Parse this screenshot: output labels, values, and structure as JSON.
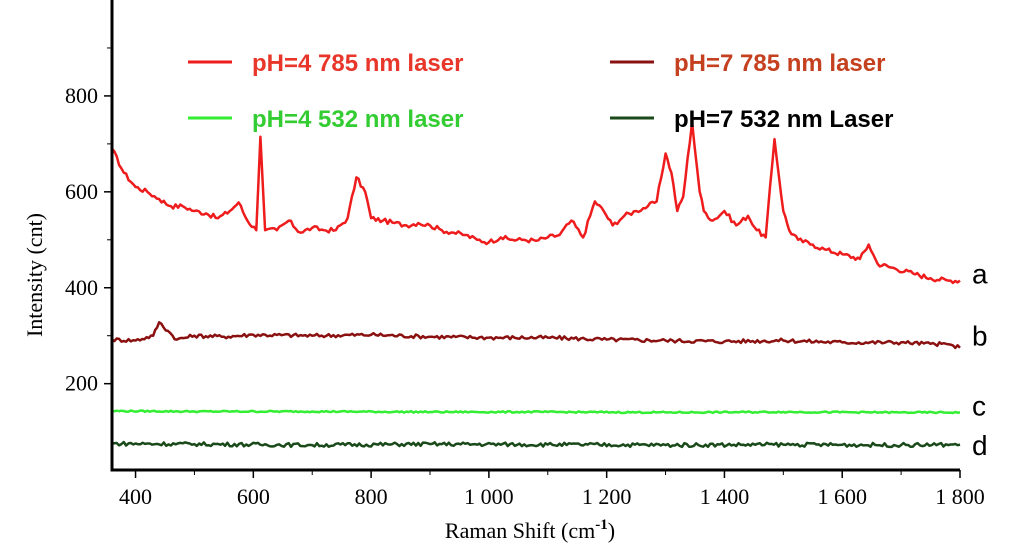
{
  "chart_data": {
    "type": "line",
    "xlabel": "Raman Shift (cm",
    "xlabel_sup": "-1",
    "xlabel_suffix": ")",
    "ylabel": "Intensity (cnt)",
    "xlim": [
      360,
      1800
    ],
    "ylim": [
      20,
      1000
    ],
    "x_ticks": [
      400,
      600,
      800,
      1000,
      1200,
      1400,
      1600,
      1800
    ],
    "x_tick_labels": [
      "400",
      "600",
      "800",
      "1 000",
      "1 200",
      "1 400",
      "1 600",
      "1 800"
    ],
    "y_ticks": [
      200,
      400,
      600,
      800
    ],
    "y_tick_labels": [
      "200",
      "400",
      "600",
      "800"
    ],
    "grid": false,
    "legend_position": "top",
    "series": [
      {
        "name": "pH=4  785 nm laser",
        "curve_label": "a",
        "color": "#ee1c1c",
        "text_color": "#e8372a",
        "x": [
          360,
          380,
          400,
          420,
          440,
          460,
          480,
          500,
          520,
          540,
          560,
          575,
          590,
          605,
          612,
          620,
          640,
          660,
          680,
          700,
          720,
          740,
          760,
          775,
          790,
          800,
          820,
          840,
          860,
          880,
          900,
          920,
          940,
          960,
          980,
          1000,
          1020,
          1040,
          1060,
          1080,
          1100,
          1120,
          1140,
          1160,
          1180,
          1195,
          1210,
          1230,
          1250,
          1270,
          1285,
          1300,
          1310,
          1320,
          1330,
          1345,
          1358,
          1365,
          1380,
          1400,
          1420,
          1440,
          1455,
          1470,
          1485,
          1500,
          1510,
          1525,
          1550,
          1570,
          1600,
          1630,
          1645,
          1660,
          1690,
          1720,
          1750,
          1780,
          1800
        ],
        "values": [
          690,
          640,
          610,
          600,
          585,
          570,
          570,
          560,
          555,
          545,
          560,
          578,
          540,
          520,
          715,
          520,
          520,
          540,
          515,
          525,
          520,
          520,
          545,
          630,
          600,
          545,
          540,
          535,
          530,
          535,
          530,
          520,
          515,
          510,
          500,
          495,
          505,
          500,
          500,
          498,
          505,
          510,
          540,
          505,
          580,
          560,
          530,
          550,
          560,
          570,
          580,
          680,
          640,
          560,
          590,
          745,
          600,
          560,
          540,
          560,
          530,
          550,
          520,
          505,
          710,
          560,
          520,
          500,
          490,
          480,
          470,
          460,
          490,
          450,
          440,
          430,
          420,
          415,
          415
        ]
      },
      {
        "name": "pH=7  785 nm laser",
        "curve_label": "b",
        "color": "#8b1111",
        "text_color": "#c4401f",
        "x": [
          360,
          400,
          430,
          440,
          455,
          470,
          500,
          550,
          600,
          700,
          800,
          900,
          1000,
          1100,
          1200,
          1300,
          1400,
          1500,
          1600,
          1700,
          1750,
          1780,
          1800
        ],
        "values": [
          292,
          290,
          300,
          328,
          310,
          292,
          300,
          298,
          302,
          300,
          302,
          298,
          296,
          296,
          292,
          290,
          288,
          290,
          286,
          286,
          283,
          282,
          275
        ]
      },
      {
        "name": "pH=4  532 nm laser",
        "curve_label": "c",
        "color": "#33ee33",
        "text_color": "#33cc33",
        "x": [
          360,
          500,
          700,
          900,
          1100,
          1300,
          1500,
          1700,
          1800
        ],
        "values": [
          143,
          142,
          142,
          141,
          141,
          140,
          141,
          140,
          140
        ]
      },
      {
        "name": "pH=7  532 nm Laser",
        "curve_label": "d",
        "color": "#1a4a1a",
        "text_color": "#000000",
        "x": [
          360,
          500,
          700,
          900,
          1100,
          1300,
          1500,
          1700,
          1800
        ],
        "values": [
          75,
          74,
          72,
          74,
          73,
          72,
          73,
          72,
          73
        ]
      }
    ]
  }
}
